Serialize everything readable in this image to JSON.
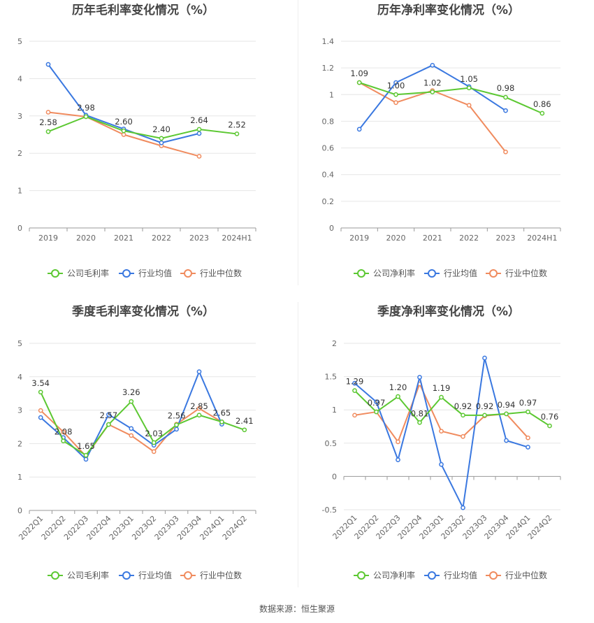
{
  "source": "数据来源：恒生聚源",
  "colors": {
    "company": "#5cc832",
    "average": "#3a78e0",
    "median": "#f08b5e",
    "grid": "#e6e6e6",
    "axis": "#999999",
    "text": "#666666",
    "title": "#444444",
    "label": "#333333"
  },
  "chart_data": [
    {
      "id": "annual-gross",
      "type": "line",
      "title": "历年毛利率变化情况（%）",
      "categories": [
        "2019",
        "2020",
        "2021",
        "2022",
        "2023",
        "2024H1"
      ],
      "ylim": [
        0,
        5
      ],
      "yticks": [
        0,
        1,
        2,
        3,
        4,
        5
      ],
      "yticklabels": [
        "0",
        "1",
        "2",
        "3",
        "4",
        "5"
      ],
      "rotate_x": false,
      "legend": [
        "公司毛利率",
        "行业均值",
        "行业中位数"
      ],
      "series": [
        {
          "name": "公司毛利率",
          "role": "company",
          "values": [
            2.58,
            2.98,
            2.6,
            2.4,
            2.64,
            2.52
          ],
          "labels": [
            "2.58",
            "2.98",
            "2.60",
            "2.40",
            "2.64",
            "2.52"
          ]
        },
        {
          "name": "行业均值",
          "role": "average",
          "values": [
            4.38,
            3.02,
            2.65,
            2.28,
            2.53,
            null
          ]
        },
        {
          "name": "行业中位数",
          "role": "median",
          "values": [
            3.1,
            2.98,
            2.5,
            2.2,
            1.92,
            null
          ]
        }
      ]
    },
    {
      "id": "annual-net",
      "type": "line",
      "title": "历年净利率变化情况（%）",
      "categories": [
        "2019",
        "2020",
        "2021",
        "2022",
        "2023",
        "2024H1"
      ],
      "ylim": [
        0,
        1.4
      ],
      "yticks": [
        0,
        0.2,
        0.4,
        0.6,
        0.8,
        1.0,
        1.2,
        1.4
      ],
      "yticklabels": [
        "0",
        "0.2",
        "0.4",
        "0.6",
        "0.8",
        "1",
        "1.2",
        "1.4"
      ],
      "rotate_x": false,
      "legend": [
        "公司净利率",
        "行业均值",
        "行业中位数"
      ],
      "series": [
        {
          "name": "公司净利率",
          "role": "company",
          "values": [
            1.09,
            1.0,
            1.02,
            1.05,
            0.98,
            0.86
          ],
          "labels": [
            "1.09",
            "1.00",
            "1.02",
            "1.05",
            "0.98",
            "0.86"
          ]
        },
        {
          "name": "行业均值",
          "role": "average",
          "values": [
            0.74,
            1.09,
            1.22,
            1.06,
            0.88,
            null
          ]
        },
        {
          "name": "行业中位数",
          "role": "median",
          "values": [
            1.09,
            0.94,
            1.03,
            0.92,
            0.57,
            null
          ]
        }
      ]
    },
    {
      "id": "quarterly-gross",
      "type": "line",
      "title": "季度毛利率变化情况（%）",
      "categories": [
        "2022Q1",
        "2022Q2",
        "2022Q3",
        "2022Q4",
        "2023Q1",
        "2023Q2",
        "2023Q3",
        "2023Q4",
        "2024Q1",
        "2024Q2"
      ],
      "ylim": [
        0,
        5
      ],
      "yticks": [
        0,
        1,
        2,
        3,
        4,
        5
      ],
      "yticklabels": [
        "0",
        "1",
        "2",
        "3",
        "4",
        "5"
      ],
      "rotate_x": true,
      "legend": [
        "公司毛利率",
        "行业均值",
        "行业中位数"
      ],
      "series": [
        {
          "name": "公司毛利率",
          "role": "company",
          "values": [
            3.54,
            2.08,
            1.65,
            2.57,
            3.26,
            2.03,
            2.56,
            2.85,
            2.65,
            2.41
          ],
          "labels": [
            "3.54",
            "2.08",
            "1.65",
            "2.57",
            "3.26",
            "2.03",
            "2.56",
            "2.85",
            "2.65",
            "2.41"
          ]
        },
        {
          "name": "行业均值",
          "role": "average",
          "values": [
            2.78,
            2.18,
            1.53,
            2.87,
            2.45,
            1.95,
            2.43,
            4.15,
            2.58,
            null
          ]
        },
        {
          "name": "行业中位数",
          "role": "median",
          "values": [
            2.99,
            2.35,
            1.62,
            2.57,
            2.24,
            1.76,
            2.58,
            3.05,
            2.65,
            null
          ]
        }
      ]
    },
    {
      "id": "quarterly-net",
      "type": "line",
      "title": "季度净利率变化情况（%）",
      "categories": [
        "2022Q1",
        "2022Q2",
        "2022Q3",
        "2022Q4",
        "2023Q1",
        "2023Q2",
        "2023Q3",
        "2023Q4",
        "2024Q1",
        "2024Q2"
      ],
      "ylim": [
        -0.5,
        2
      ],
      "yticks": [
        -0.5,
        0,
        0.5,
        1,
        1.5,
        2
      ],
      "yticklabels": [
        "-0.5",
        "0",
        "0.5",
        "1",
        "1.5",
        "2"
      ],
      "rotate_x": true,
      "legend": [
        "公司净利率",
        "行业均值",
        "行业中位数"
      ],
      "series": [
        {
          "name": "公司净利率",
          "role": "company",
          "values": [
            1.29,
            0.97,
            1.2,
            0.81,
            1.19,
            0.92,
            0.92,
            0.94,
            0.97,
            0.76
          ],
          "labels": [
            "1.29",
            "0.97",
            "1.20",
            "0.81",
            "1.19",
            "0.92",
            "0.92",
            "0.94",
            "0.97",
            "0.76"
          ]
        },
        {
          "name": "行业均值",
          "role": "average",
          "values": [
            1.4,
            1.12,
            0.25,
            1.49,
            0.18,
            -0.47,
            1.78,
            0.54,
            0.44,
            null
          ]
        },
        {
          "name": "行业中位数",
          "role": "median",
          "values": [
            0.92,
            0.97,
            0.52,
            1.39,
            0.68,
            0.6,
            0.91,
            0.94,
            0.58,
            null
          ]
        }
      ]
    }
  ]
}
